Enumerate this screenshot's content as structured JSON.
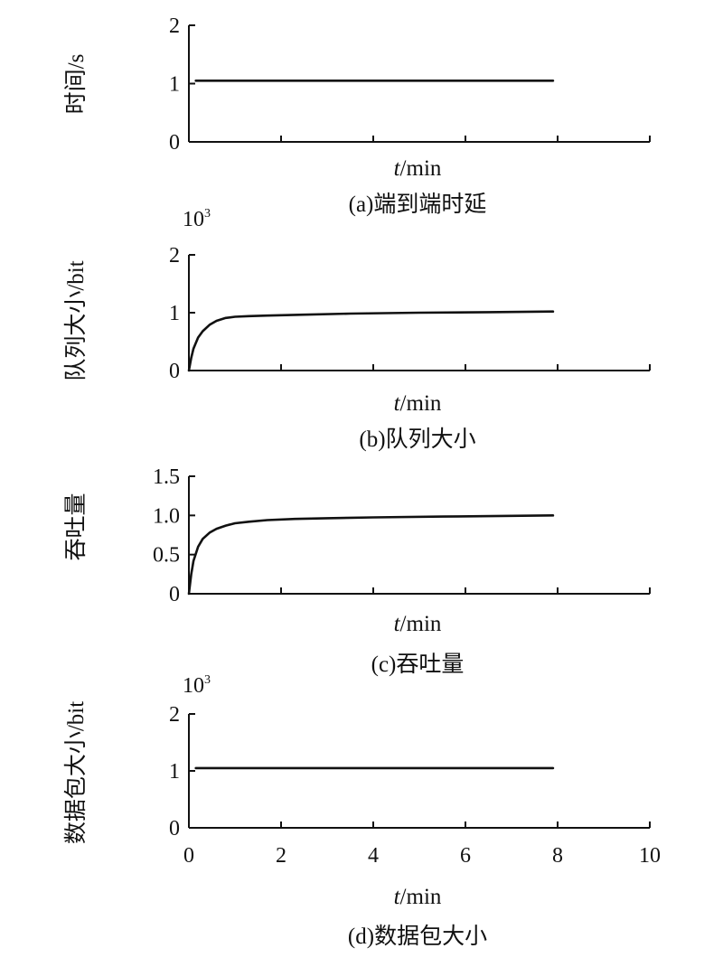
{
  "chart_data": [
    {
      "id": "a",
      "type": "line",
      "caption": "(a)端到端时延",
      "ylabel": "时间/s",
      "xlabel_var": "t",
      "xlabel_unit": "/min",
      "y_multiplier": "",
      "xlim": [
        0,
        10
      ],
      "ylim": [
        0,
        2
      ],
      "yticks": [
        0,
        1,
        2
      ],
      "ytick_labels": [
        "0",
        "1",
        "2"
      ],
      "xticks": [
        0,
        2,
        4,
        6,
        8,
        10
      ],
      "xtick_labels": [],
      "series": [
        {
          "x": [
            0.15,
            7.9
          ],
          "y": [
            1.05,
            1.05
          ]
        }
      ]
    },
    {
      "id": "b",
      "type": "line",
      "caption": "(b)队列大小",
      "ylabel": "队列大小/bit",
      "xlabel_var": "t",
      "xlabel_unit": "/min",
      "y_multiplier": "10",
      "y_multiplier_exp": "3",
      "xlim": [
        0,
        10
      ],
      "ylim": [
        0,
        2
      ],
      "yticks": [
        0,
        1,
        2
      ],
      "ytick_labels": [
        "0",
        "1",
        "2"
      ],
      "xticks": [
        0,
        2,
        4,
        6,
        8,
        10
      ],
      "xtick_labels": [],
      "series": [
        {
          "x": [
            0.0,
            0.05,
            0.1,
            0.2,
            0.3,
            0.45,
            0.6,
            0.8,
            1.0,
            1.3,
            1.7,
            2.5,
            3.5,
            5.0,
            6.5,
            7.9
          ],
          "y": [
            0.0,
            0.22,
            0.38,
            0.57,
            0.68,
            0.79,
            0.86,
            0.91,
            0.93,
            0.94,
            0.95,
            0.965,
            0.985,
            1.0,
            1.01,
            1.02
          ]
        }
      ]
    },
    {
      "id": "c",
      "type": "line",
      "caption": "(c)吞吐量",
      "ylabel": "吞吐量",
      "xlabel_var": "t",
      "xlabel_unit": "/min",
      "y_multiplier": "",
      "xlim": [
        0,
        10
      ],
      "ylim": [
        0,
        1.5
      ],
      "yticks": [
        0,
        0.5,
        1.0,
        1.5
      ],
      "ytick_labels": [
        "0",
        "0.5",
        "1.0",
        "1.5"
      ],
      "xticks": [
        0,
        2,
        4,
        6,
        8,
        10
      ],
      "xtick_labels": [],
      "series": [
        {
          "x": [
            0.0,
            0.05,
            0.1,
            0.2,
            0.3,
            0.45,
            0.6,
            0.8,
            1.0,
            1.3,
            1.7,
            2.3,
            3.0,
            4.0,
            5.5,
            7.0,
            7.9
          ],
          "y": [
            0.0,
            0.25,
            0.42,
            0.6,
            0.7,
            0.78,
            0.83,
            0.87,
            0.9,
            0.92,
            0.94,
            0.955,
            0.965,
            0.975,
            0.985,
            0.995,
            1.0
          ]
        }
      ]
    },
    {
      "id": "d",
      "type": "line",
      "caption": "(d)数据包大小",
      "ylabel": "数据包大小/bit",
      "xlabel_var": "t",
      "xlabel_unit": "/min",
      "y_multiplier": "10",
      "y_multiplier_exp": "3",
      "xlim": [
        0,
        10
      ],
      "ylim": [
        0,
        2
      ],
      "yticks": [
        0,
        1,
        2
      ],
      "ytick_labels": [
        "0",
        "1",
        "2"
      ],
      "xticks": [
        0,
        2,
        4,
        6,
        8,
        10
      ],
      "xtick_labels": [
        "0",
        "2",
        "4",
        "6",
        "8",
        "10"
      ],
      "series": [
        {
          "x": [
            0.15,
            7.9
          ],
          "y": [
            1.05,
            1.05
          ]
        }
      ]
    }
  ]
}
